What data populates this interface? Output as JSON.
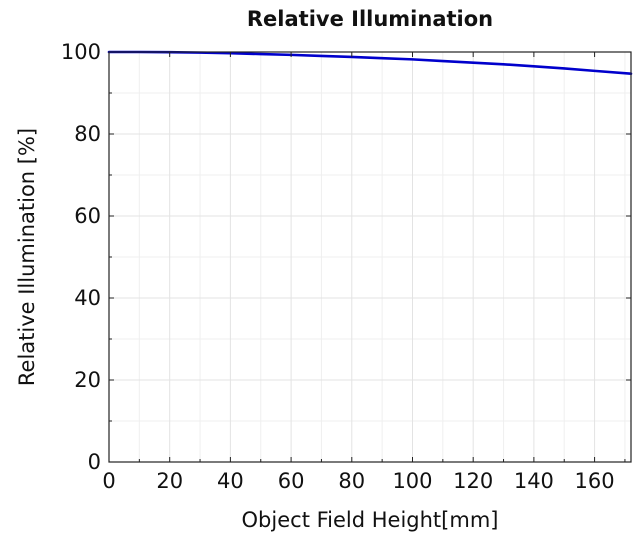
{
  "chart_data": {
    "type": "line",
    "title": "Relative Illumination",
    "xlabel": "Object Field Height[mm]",
    "ylabel": "Relative Illumination [%]",
    "xlim": [
      0,
      172
    ],
    "ylim": [
      0,
      100
    ],
    "xticks": [
      0,
      20,
      40,
      60,
      80,
      100,
      120,
      140,
      160
    ],
    "yticks": [
      0,
      20,
      40,
      60,
      80,
      100
    ],
    "grid": true,
    "line_color": "#0000cc",
    "series": [
      {
        "x": [
          0,
          10,
          20,
          30,
          40,
          50,
          60,
          70,
          80,
          90,
          100,
          110,
          120,
          130,
          140,
          150,
          160,
          172
        ],
        "y": [
          100,
          100,
          99.95,
          99.85,
          99.7,
          99.5,
          99.3,
          99.05,
          98.8,
          98.5,
          98.2,
          97.8,
          97.4,
          97.0,
          96.5,
          96.0,
          95.4,
          94.7
        ]
      }
    ]
  }
}
